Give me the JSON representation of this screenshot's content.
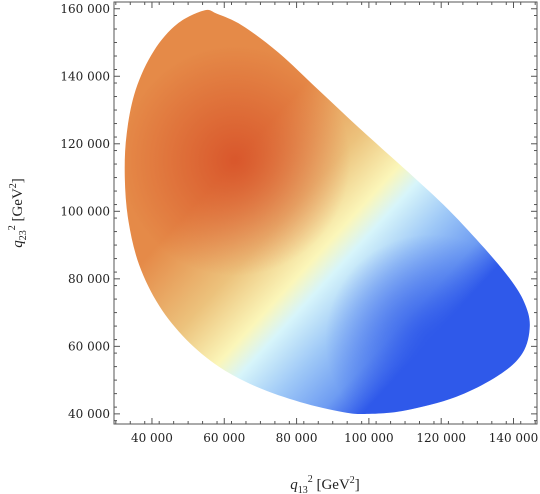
{
  "chart_data": {
    "type": "heatmap",
    "title": "",
    "xlabel": {
      "var": "q",
      "sub": "13",
      "sup": "2",
      "unit_pre": " [GeV",
      "unit_sup": "2",
      "unit_post": "]"
    },
    "ylabel": {
      "var": "q",
      "sub": "23",
      "sup": "2",
      "unit_pre": " [GeV",
      "unit_sup": "2",
      "unit_post": "]"
    },
    "xlim": [
      29500,
      146500
    ],
    "ylim": [
      37000,
      162000
    ],
    "x_ticks": [
      40000,
      60000,
      80000,
      100000,
      120000,
      140000
    ],
    "x_tick_labels": [
      "40 000",
      "60 000",
      "80 000",
      "100 000",
      "120 000",
      "140 000"
    ],
    "y_ticks": [
      40000,
      60000,
      80000,
      100000,
      120000,
      140000,
      160000
    ],
    "y_tick_labels": [
      "40 000",
      "60 000",
      "80 000",
      "100 000",
      "120 000",
      "140 000",
      "160 000"
    ],
    "region_boundary": [
      [
        54500,
        159500
      ],
      [
        47000,
        155500
      ],
      [
        40500,
        147500
      ],
      [
        35500,
        136000
      ],
      [
        33000,
        123000
      ],
      [
        32500,
        110000
      ],
      [
        33500,
        97000
      ],
      [
        36500,
        84000
      ],
      [
        42000,
        72000
      ],
      [
        49500,
        62000
      ],
      [
        58500,
        54000
      ],
      [
        69000,
        48000
      ],
      [
        81000,
        43500
      ],
      [
        93000,
        40500
      ],
      [
        100000,
        40000
      ],
      [
        110000,
        41000
      ],
      [
        124000,
        45000
      ],
      [
        136000,
        51500
      ],
      [
        142500,
        58000
      ],
      [
        144500,
        66000
      ],
      [
        143000,
        73000
      ],
      [
        139000,
        80000
      ],
      [
        132000,
        89000
      ],
      [
        122000,
        100500
      ],
      [
        111000,
        111500
      ],
      [
        98000,
        124000
      ],
      [
        86000,
        136000
      ],
      [
        75000,
        147000
      ],
      [
        65000,
        155000
      ],
      [
        58000,
        158500
      ]
    ],
    "hot_spot": [
      63000,
      115000
    ],
    "cold_spot": [
      117000,
      62000
    ],
    "colorscale": [
      "#d8542a",
      "#e58a48",
      "#ecc27c",
      "#fbf6b9",
      "#d7f5fa",
      "#9ec8f7",
      "#6e9cf2",
      "#2f59ea"
    ]
  }
}
